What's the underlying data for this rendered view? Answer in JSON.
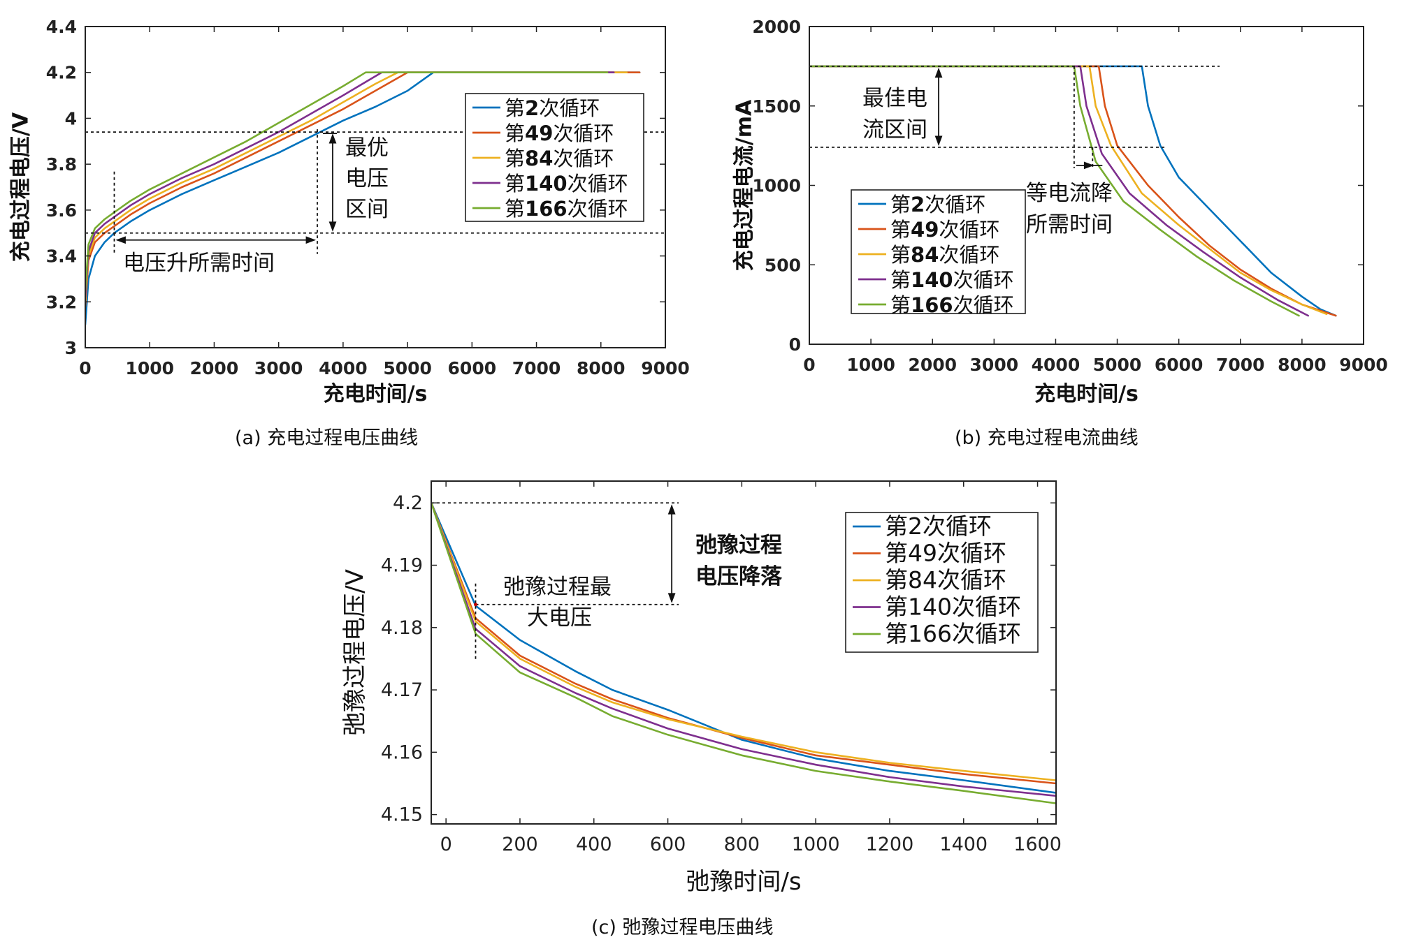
{
  "colors": {
    "series": [
      "#0072BD",
      "#D95319",
      "#EDB120",
      "#7E2F8E",
      "#77AC30"
    ],
    "frame": "#222222",
    "guide": "#111111"
  },
  "panels": {
    "a": {
      "caption": "(a)    充电过程电压曲线",
      "annotations": {
        "optimal_range": [
          "最优",
          "电压",
          "区间"
        ],
        "rise_time": "电压升所需时间"
      }
    },
    "b": {
      "caption": "(b)    充电过程电流曲线",
      "annotations": {
        "best_range": [
          "最佳电",
          "流区间"
        ],
        "drop_time": [
          "等电流降",
          "所需时间"
        ]
      }
    },
    "c": {
      "caption": "(c)    弛豫过程电压曲线",
      "annotations": {
        "max_voltage": [
          "弛豫过程最",
          "大电压"
        ],
        "voltage_drop": [
          "弛豫过程",
          "电压降落"
        ]
      }
    }
  },
  "chart_data": [
    {
      "id": "a",
      "type": "line",
      "title": "",
      "xlabel": "充电时间/s",
      "ylabel": "充电过程电压/V",
      "xlim": [
        0,
        9000
      ],
      "ylim": [
        3,
        4.4
      ],
      "xticks": [
        0,
        1000,
        2000,
        3000,
        4000,
        5000,
        6000,
        7000,
        8000,
        9000
      ],
      "yticks": [
        3,
        3.2,
        3.4,
        3.6,
        3.8,
        4,
        4.2,
        4.4
      ],
      "ytick_labels": [
        "3",
        "3.2",
        "3.4",
        "3.6",
        "3.8",
        "4",
        "4.2",
        "4.4"
      ],
      "legend": [
        "第2次循环",
        "第49次循环",
        "第84次循环",
        "第140次循环",
        "第166次循环"
      ],
      "legend_position": "right",
      "series": [
        {
          "name": "第2次循环",
          "x": [
            0,
            50,
            150,
            300,
            450,
            700,
            1000,
            1500,
            2000,
            2500,
            3000,
            3500,
            4000,
            4500,
            5000,
            5400,
            6000,
            7000,
            8000,
            8600
          ],
          "y": [
            3.1,
            3.3,
            3.4,
            3.46,
            3.5,
            3.55,
            3.6,
            3.67,
            3.73,
            3.79,
            3.85,
            3.92,
            3.99,
            4.05,
            4.12,
            4.2,
            4.2,
            4.2,
            4.2,
            4.2
          ]
        },
        {
          "name": "第49次循环",
          "x": [
            0,
            50,
            150,
            300,
            450,
            700,
            1000,
            1500,
            2000,
            2500,
            3000,
            3500,
            4000,
            4500,
            5000,
            6000,
            7000,
            8000,
            8600
          ],
          "y": [
            3.18,
            3.38,
            3.46,
            3.5,
            3.53,
            3.58,
            3.63,
            3.7,
            3.76,
            3.83,
            3.9,
            3.97,
            4.04,
            4.12,
            4.2,
            4.2,
            4.2,
            4.2,
            4.2
          ]
        },
        {
          "name": "第84次循环",
          "x": [
            0,
            50,
            150,
            300,
            450,
            700,
            1000,
            1500,
            2000,
            2500,
            3000,
            3500,
            4000,
            4500,
            4850,
            6000,
            7000,
            8000,
            8400
          ],
          "y": [
            3.2,
            3.4,
            3.48,
            3.52,
            3.55,
            3.6,
            3.65,
            3.72,
            3.78,
            3.85,
            3.92,
            3.99,
            4.07,
            4.15,
            4.2,
            4.2,
            4.2,
            4.2,
            4.2
          ]
        },
        {
          "name": "第140次循环",
          "x": [
            0,
            50,
            150,
            300,
            450,
            700,
            1000,
            1500,
            2000,
            2500,
            3000,
            3500,
            4000,
            4600,
            6000,
            7000,
            8000,
            8200
          ],
          "y": [
            3.22,
            3.42,
            3.5,
            3.54,
            3.57,
            3.62,
            3.67,
            3.74,
            3.8,
            3.87,
            3.94,
            4.02,
            4.1,
            4.2,
            4.2,
            4.2,
            4.2,
            4.2
          ]
        },
        {
          "name": "第166次循环",
          "x": [
            0,
            50,
            150,
            300,
            450,
            700,
            1000,
            1500,
            2000,
            2500,
            3000,
            3500,
            4000,
            4350,
            6000,
            7000,
            8000,
            8100
          ],
          "y": [
            3.25,
            3.45,
            3.52,
            3.56,
            3.59,
            3.64,
            3.69,
            3.76,
            3.83,
            3.9,
            3.98,
            4.06,
            4.14,
            4.2,
            4.2,
            4.2,
            4.2,
            4.2
          ]
        }
      ],
      "guides": {
        "x_start": 450,
        "x_end": 3600,
        "y_low": 3.5,
        "y_high": 3.94
      }
    },
    {
      "id": "b",
      "type": "line",
      "title": "",
      "xlabel": "充电时间/s",
      "ylabel": "充电过程电流/mA",
      "xlim": [
        0,
        9000
      ],
      "ylim": [
        0,
        2000
      ],
      "xticks": [
        0,
        1000,
        2000,
        3000,
        4000,
        5000,
        6000,
        7000,
        8000,
        9000
      ],
      "yticks": [
        0,
        500,
        1000,
        1500,
        2000
      ],
      "ytick_labels": [
        "0",
        "500",
        "1000",
        "1500",
        "2000"
      ],
      "legend": [
        "第2次循环",
        "第49次循环",
        "第84次循环",
        "第140次循环",
        "第166次循环"
      ],
      "legend_position": "bottom-left",
      "series": [
        {
          "name": "第2次循环",
          "x": [
            0,
            5400,
            5500,
            5700,
            6000,
            6500,
            7000,
            7500,
            8000,
            8300,
            8550
          ],
          "y": [
            1750,
            1750,
            1500,
            1250,
            1050,
            850,
            650,
            450,
            300,
            220,
            180
          ]
        },
        {
          "name": "第49次循环",
          "x": [
            0,
            4700,
            4800,
            5000,
            5500,
            6000,
            6500,
            7000,
            7500,
            8000,
            8550
          ],
          "y": [
            1750,
            1750,
            1500,
            1250,
            1000,
            800,
            620,
            470,
            350,
            250,
            180
          ]
        },
        {
          "name": "第84次循环",
          "x": [
            0,
            4550,
            4650,
            4900,
            5400,
            6000,
            6500,
            7000,
            7500,
            8000,
            8400
          ],
          "y": [
            1750,
            1750,
            1500,
            1250,
            950,
            750,
            600,
            450,
            340,
            250,
            190
          ]
        },
        {
          "name": "第140次循环",
          "x": [
            0,
            4400,
            4500,
            4750,
            5200,
            5800,
            6400,
            7000,
            7600,
            8100
          ],
          "y": [
            1750,
            1750,
            1500,
            1200,
            950,
            750,
            580,
            420,
            280,
            180
          ]
        },
        {
          "name": "第166次循环",
          "x": [
            0,
            4300,
            4400,
            4650,
            5100,
            5700,
            6300,
            6900,
            7500,
            7950
          ],
          "y": [
            1750,
            1750,
            1500,
            1150,
            900,
            720,
            550,
            400,
            270,
            180
          ]
        }
      ],
      "guides": {
        "y_high": 1750,
        "y_low": 1240,
        "x_right_high": 5300,
        "x_right_low": 5800,
        "x_arrow": 2100,
        "x_t1": 4300,
        "x_t2": 4600
      }
    },
    {
      "id": "c",
      "type": "line",
      "title": "",
      "xlabel": "弛豫时间/s",
      "ylabel": "弛豫过程电压/V",
      "xlim": [
        -40,
        1650
      ],
      "ylim": [
        4.1485,
        4.2035
      ],
      "xticks": [
        0,
        200,
        400,
        600,
        800,
        1000,
        1200,
        1400,
        1600
      ],
      "yticks": [
        4.15,
        4.16,
        4.17,
        4.18,
        4.19,
        4.2
      ],
      "ytick_labels": [
        "4.15",
        "4.16",
        "4.17",
        "4.18",
        "4.19",
        "4.2"
      ],
      "legend": [
        "第2次循环",
        "第49次循环",
        "第84次循环",
        "第140次循环",
        "第166次循环"
      ],
      "legend_position": "top-right",
      "series": [
        {
          "name": "第2次循环",
          "x": [
            -40,
            80,
            200,
            350,
            450,
            600,
            800,
            1000,
            1200,
            1400,
            1650
          ],
          "y": [
            4.2,
            4.1835,
            4.178,
            4.173,
            4.17,
            4.1668,
            4.162,
            4.159,
            4.157,
            4.1555,
            4.1535
          ]
        },
        {
          "name": "第49次循环",
          "x": [
            -40,
            80,
            200,
            350,
            450,
            600,
            800,
            1000,
            1200,
            1400,
            1650
          ],
          "y": [
            4.2,
            4.1815,
            4.1755,
            4.171,
            4.1685,
            4.1655,
            4.1623,
            4.1595,
            4.158,
            4.1565,
            4.155
          ]
        },
        {
          "name": "第84次循环",
          "x": [
            -40,
            80,
            200,
            350,
            450,
            600,
            800,
            1000,
            1200,
            1400,
            1650
          ],
          "y": [
            4.2,
            4.181,
            4.175,
            4.1705,
            4.168,
            4.1653,
            4.1625,
            4.16,
            4.1583,
            4.157,
            4.1555
          ]
        },
        {
          "name": "第140次循环",
          "x": [
            -40,
            80,
            200,
            350,
            450,
            600,
            800,
            1000,
            1200,
            1400,
            1650
          ],
          "y": [
            4.2,
            4.1798,
            4.1738,
            4.1695,
            4.167,
            4.1638,
            4.1605,
            4.158,
            4.156,
            4.1545,
            4.153
          ]
        },
        {
          "name": "第166次循环",
          "x": [
            -40,
            80,
            200,
            350,
            450,
            600,
            800,
            1000,
            1200,
            1400,
            1650
          ],
          "y": [
            4.2,
            4.179,
            4.1728,
            4.1688,
            4.1658,
            4.1628,
            4.1595,
            4.157,
            4.1553,
            4.1538,
            4.1518
          ]
        }
      ],
      "guides": {
        "y_top": 4.2,
        "y_max": 4.1837,
        "x_marker": 80,
        "x_right": 620
      }
    }
  ]
}
